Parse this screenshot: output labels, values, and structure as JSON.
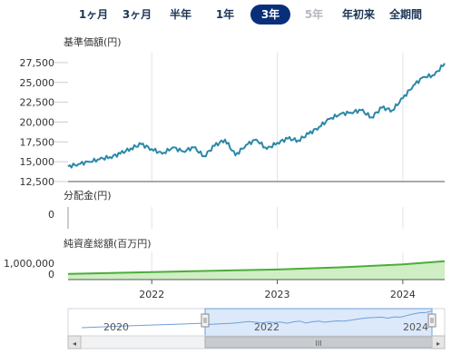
{
  "range_buttons": [
    {
      "label": "1ヶ月",
      "state": "normal"
    },
    {
      "label": "3ヶ月",
      "state": "normal"
    },
    {
      "label": "半年",
      "state": "normal"
    },
    {
      "label": "1年",
      "state": "normal"
    },
    {
      "label": "3年",
      "state": "active"
    },
    {
      "label": "5年",
      "state": "disabled"
    },
    {
      "label": "年初来",
      "state": "normal"
    },
    {
      "label": "全期間",
      "state": "normal"
    }
  ],
  "colors": {
    "accent": "#0a2f7a",
    "price_line": "#2b88a8",
    "assets_line": "#4cad3a",
    "assets_fill": "#cfeec4",
    "navigator_fill": "#dbe9fb",
    "navigator_line": "#6f9fd8"
  },
  "chart_data": [
    {
      "type": "line",
      "title": "基準価額(円)",
      "x_range": [
        "2021-05",
        "2024-05"
      ],
      "ylim": [
        12500,
        28750
      ],
      "y_ticks": [
        "27,500",
        "25,000",
        "22,500",
        "20,000",
        "17,500",
        "15,000",
        "12,500"
      ],
      "series": [
        {
          "points": [
            [
              "2021-05",
              14400
            ],
            [
              "2021-06",
              14700
            ],
            [
              "2021-07",
              15000
            ],
            [
              "2021-08",
              15300
            ],
            [
              "2021-09",
              15600
            ],
            [
              "2021-10",
              16000
            ],
            [
              "2021-11",
              16700
            ],
            [
              "2021-12",
              17200
            ],
            [
              "2022-01",
              16600
            ],
            [
              "2022-02",
              16000
            ],
            [
              "2022-03",
              16800
            ],
            [
              "2022-04",
              16300
            ],
            [
              "2022-05",
              16800
            ],
            [
              "2022-06",
              15700
            ],
            [
              "2022-07",
              17000
            ],
            [
              "2022-08",
              17800
            ],
            [
              "2022-09",
              15800
            ],
            [
              "2022-10",
              17100
            ],
            [
              "2022-11",
              17800
            ],
            [
              "2022-12",
              16600
            ],
            [
              "2023-01",
              17400
            ],
            [
              "2023-02",
              17900
            ],
            [
              "2023-03",
              17700
            ],
            [
              "2023-04",
              18500
            ],
            [
              "2023-05",
              19400
            ],
            [
              "2023-06",
              20400
            ],
            [
              "2023-07",
              21000
            ],
            [
              "2023-08",
              21200
            ],
            [
              "2023-09",
              21500
            ],
            [
              "2023-10",
              20600
            ],
            [
              "2023-11",
              21800
            ],
            [
              "2023-12",
              21500
            ],
            [
              "2024-01",
              23000
            ],
            [
              "2024-02",
              24600
            ],
            [
              "2024-03",
              25700
            ],
            [
              "2024-04",
              25900
            ],
            [
              "2024-05",
              27400
            ]
          ]
        }
      ]
    },
    {
      "type": "line",
      "title": "分配金(円)",
      "y_ticks": [
        "0"
      ],
      "series": [
        {
          "points": [
            [
              "2021-05",
              0
            ],
            [
              "2024-05",
              0
            ]
          ]
        }
      ]
    },
    {
      "type": "area",
      "title": "純資産総額(百万円)",
      "ylim": [
        0,
        2000000
      ],
      "y_ticks": [
        "1,000,000",
        "0"
      ],
      "x_tick_labels": [
        "2022",
        "2023",
        "2024"
      ],
      "series": [
        {
          "points": [
            [
              "2021-05",
              300000
            ],
            [
              "2022-01",
              450000
            ],
            [
              "2022-07",
              560000
            ],
            [
              "2023-01",
              650000
            ],
            [
              "2023-07",
              820000
            ],
            [
              "2024-01",
              1050000
            ],
            [
              "2024-05",
              1300000
            ]
          ]
        }
      ]
    }
  ],
  "navigator": {
    "x_tick_labels": [
      "2020",
      "2022",
      "2024"
    ],
    "scroll_left": "◂",
    "scroll_right": "▸",
    "scroll_grip": "III"
  }
}
